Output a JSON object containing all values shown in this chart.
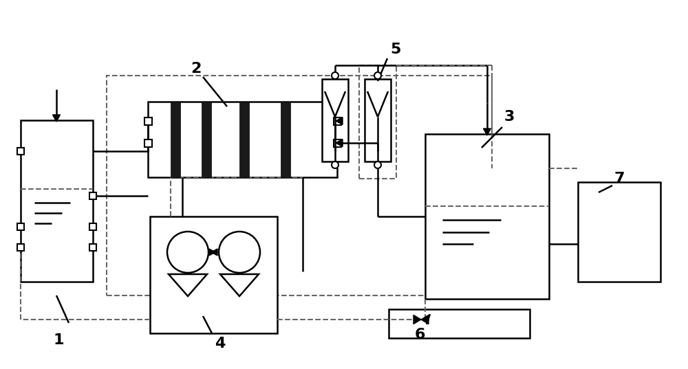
{
  "bg_color": "#ffffff",
  "line_color": "#000000",
  "dashed_color": "#666666",
  "label_fontsize": 16
}
